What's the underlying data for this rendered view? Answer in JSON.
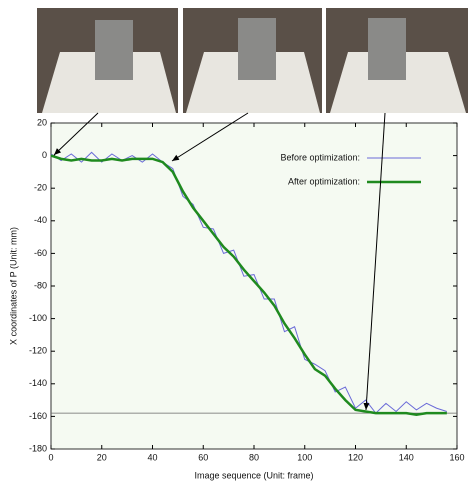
{
  "chart_data": {
    "type": "line",
    "x_label": "Image sequence (Unit: frame)",
    "y_label": "X coordinates of P (Unit: mm)",
    "x": [
      0,
      4,
      8,
      12,
      16,
      20,
      24,
      28,
      32,
      36,
      40,
      44,
      48,
      52,
      56,
      60,
      64,
      68,
      72,
      76,
      80,
      84,
      88,
      92,
      96,
      100,
      104,
      108,
      112,
      116,
      120,
      124,
      128,
      132,
      136,
      140,
      144,
      148,
      152,
      156
    ],
    "series": [
      {
        "name": "Before optimization:",
        "color": "#6a6ad8",
        "width": 1,
        "values": [
          1,
          -3,
          1,
          -4,
          2,
          -4,
          1,
          -3,
          0,
          -4,
          1,
          -4,
          -8,
          -25,
          -30,
          -44,
          -45,
          -60,
          -58,
          -74,
          -73,
          -88,
          -88,
          -108,
          -105,
          -125,
          -128,
          -132,
          -145,
          -142,
          -155,
          -150,
          -158,
          -152,
          -157,
          -151,
          -156,
          -152,
          -155,
          -157
        ]
      },
      {
        "name": "After optimization:",
        "color": "#1f8a1f",
        "width": 2.5,
        "values": [
          0,
          -2,
          -3,
          -2,
          -3,
          -3,
          -2,
          -3,
          -2,
          -2,
          -2,
          -4,
          -10,
          -22,
          -32,
          -40,
          -48,
          -56,
          -62,
          -70,
          -77,
          -84,
          -92,
          -103,
          -112,
          -122,
          -131,
          -135,
          -143,
          -150,
          -156,
          -157,
          -158,
          -158,
          -158,
          -158,
          -159,
          -158,
          -158,
          -158
        ]
      }
    ],
    "reference_line": -158,
    "xlim": [
      0,
      160
    ],
    "xticks": [
      0,
      20,
      40,
      60,
      80,
      100,
      120,
      140,
      160
    ],
    "ylim": [
      -180,
      20
    ],
    "yticks": [
      -180,
      -160,
      -140,
      -120,
      -100,
      -80,
      -60,
      -40,
      -20,
      0,
      20
    ]
  }
}
